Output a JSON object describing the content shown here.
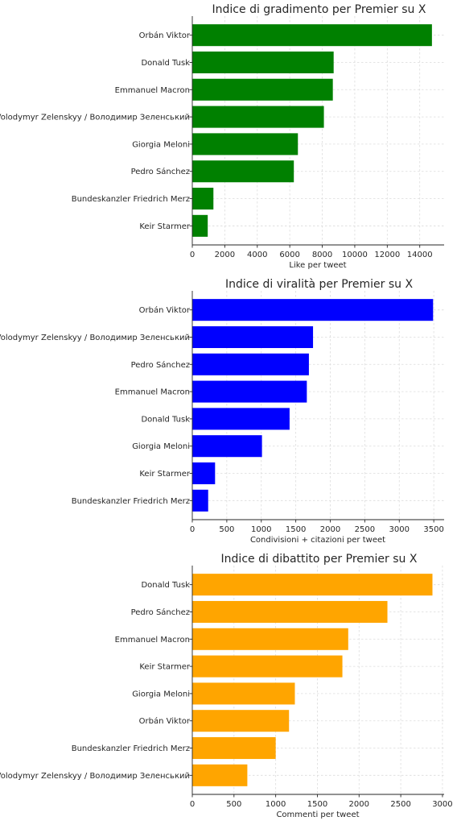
{
  "chart_data": [
    {
      "type": "bar",
      "orientation": "horizontal",
      "title": "Indice di gradimento per Premier su X",
      "xlabel": "Like per tweet",
      "ylabel": "",
      "color": "#008000",
      "xlim": [
        0,
        15500
      ],
      "xticks": [
        0,
        2000,
        4000,
        6000,
        8000,
        10000,
        12000,
        14000
      ],
      "grid": true,
      "categories": [
        "Orbán Viktor",
        "Donald Tusk",
        "Emmanuel Macron",
        "Volodymyr Zelenskyy / Володимир Зеленський",
        "Giorgia Meloni",
        "Pedro Sánchez",
        "Bundeskanzler Friedrich Merz",
        "Keir Starmer"
      ],
      "values": [
        14750,
        8700,
        8650,
        8100,
        6500,
        6250,
        1300,
        950
      ]
    },
    {
      "type": "bar",
      "orientation": "horizontal",
      "title": "Indice di viralità per Premier su X",
      "xlabel": "Condivisioni + citazioni per tweet",
      "ylabel": "",
      "color": "#0000ff",
      "xlim": [
        0,
        3650
      ],
      "xticks": [
        0,
        500,
        1000,
        1500,
        2000,
        2500,
        3000,
        3500
      ],
      "grid": true,
      "categories": [
        "Orbán Viktor",
        "Volodymyr Zelenskyy / Володимир Зеленський",
        "Pedro Sánchez",
        "Emmanuel Macron",
        "Donald Tusk",
        "Giorgia Meloni",
        "Keir Starmer",
        "Bundeskanzler Friedrich Merz"
      ],
      "values": [
        3490,
        1750,
        1690,
        1660,
        1410,
        1010,
        330,
        230
      ]
    },
    {
      "type": "bar",
      "orientation": "horizontal",
      "title": "Indice di dibattito per Premier su X",
      "xlabel": "Commenti per tweet",
      "ylabel": "",
      "color": "#ffa500",
      "xlim": [
        0,
        3020
      ],
      "xticks": [
        0,
        500,
        1000,
        1500,
        2000,
        2500,
        3000
      ],
      "grid": true,
      "categories": [
        "Donald Tusk",
        "Pedro Sánchez",
        "Emmanuel Macron",
        "Keir Starmer",
        "Giorgia Meloni",
        "Orbán Viktor",
        "Bundeskanzler Friedrich Merz",
        "Volodymyr Zelenskyy / Володимир Зеленський"
      ],
      "values": [
        2880,
        2340,
        1870,
        1800,
        1230,
        1160,
        1000,
        660
      ]
    }
  ]
}
